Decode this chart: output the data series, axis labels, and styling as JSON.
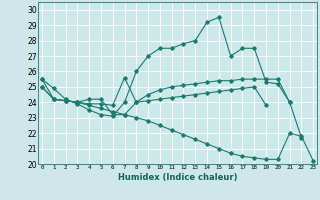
{
  "xlabel": "Humidex (Indice chaleur)",
  "bg_color": "#cce8e8",
  "line_color": "#1a7a6e",
  "xlim": [
    0,
    23
  ],
  "ylim": [
    20,
    30.5
  ],
  "yticks": [
    20,
    21,
    22,
    23,
    24,
    25,
    26,
    27,
    28,
    29,
    30
  ],
  "xticks": [
    0,
    1,
    2,
    3,
    4,
    5,
    6,
    7,
    8,
    9,
    10,
    11,
    12,
    13,
    14,
    15,
    16,
    17,
    18,
    19,
    20,
    21,
    22,
    23
  ],
  "series": [
    [
      25.5,
      24.9,
      24.2,
      23.9,
      23.5,
      23.2,
      23.1,
      24.0,
      26.0,
      27.0,
      27.5,
      27.5,
      27.8,
      28.0,
      29.2,
      29.5,
      27.0,
      27.5,
      27.5,
      25.3,
      25.2,
      24.0,
      21.7,
      null
    ],
    [
      25.5,
      24.2,
      24.1,
      24.0,
      23.9,
      23.9,
      23.8,
      25.6,
      24.0,
      24.5,
      24.8,
      25.0,
      25.1,
      25.2,
      25.3,
      25.4,
      25.4,
      25.5,
      25.5,
      25.5,
      25.5,
      24.0,
      null,
      null
    ],
    [
      25.0,
      24.2,
      24.1,
      24.0,
      24.2,
      24.2,
      23.2,
      23.2,
      24.0,
      24.1,
      24.2,
      24.3,
      24.4,
      24.5,
      24.6,
      24.7,
      24.8,
      24.9,
      25.0,
      23.8,
      null,
      null,
      null,
      null
    ],
    [
      25.0,
      24.2,
      24.1,
      24.0,
      23.8,
      23.6,
      23.4,
      23.2,
      23.0,
      22.8,
      22.5,
      22.2,
      21.9,
      21.6,
      21.3,
      21.0,
      20.7,
      20.5,
      20.4,
      20.3,
      20.3,
      22.0,
      21.8,
      20.2
    ]
  ]
}
